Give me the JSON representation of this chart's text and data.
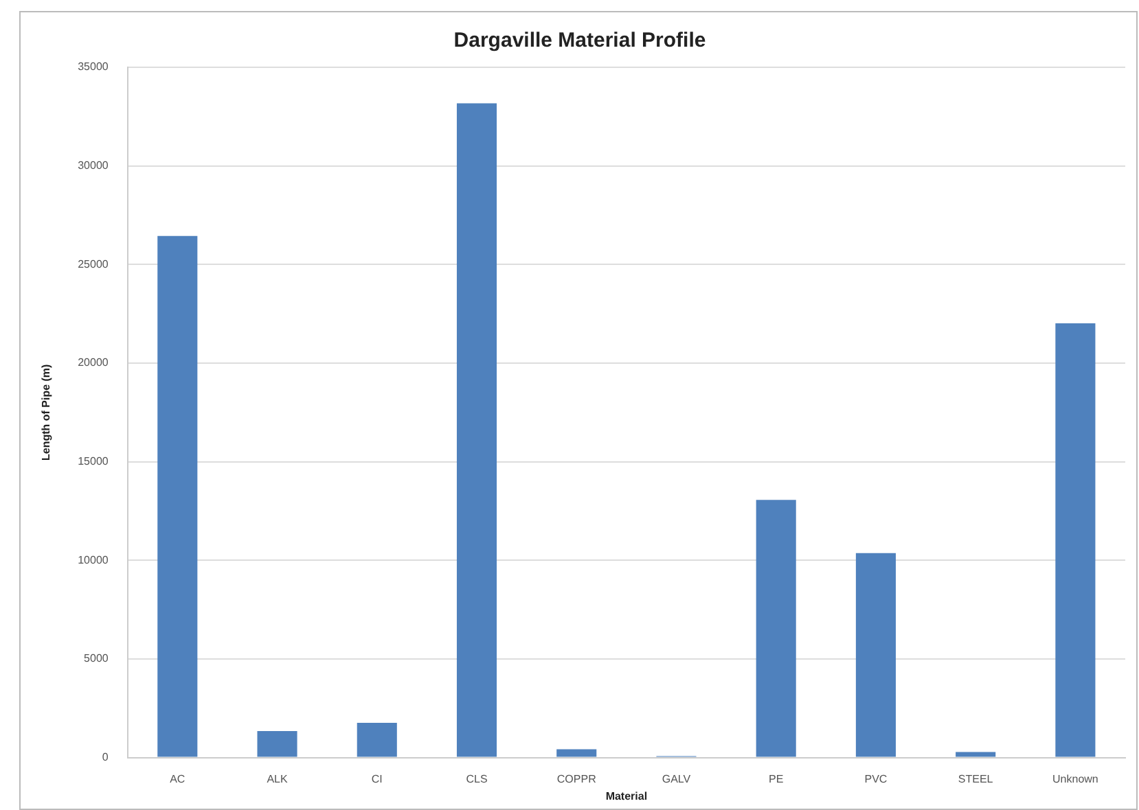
{
  "chart_data": {
    "type": "bar",
    "title": "Dargaville Material Profile",
    "xlabel": "Material",
    "ylabel": "Length of Pipe (m)",
    "categories": [
      "AC",
      "ALK",
      "CI",
      "CLS",
      "COPPR",
      "GALV",
      "PE",
      "PVC",
      "STEEL",
      "Unknown"
    ],
    "values": [
      26450,
      1340,
      1760,
      33170,
      420,
      70,
      13060,
      10370,
      280,
      22020
    ],
    "color": "#4f81bd",
    "ylim": [
      0,
      35000
    ],
    "yticks": [
      0,
      5000,
      10000,
      15000,
      20000,
      25000,
      30000,
      35000
    ],
    "grid": "y",
    "legend": false
  }
}
